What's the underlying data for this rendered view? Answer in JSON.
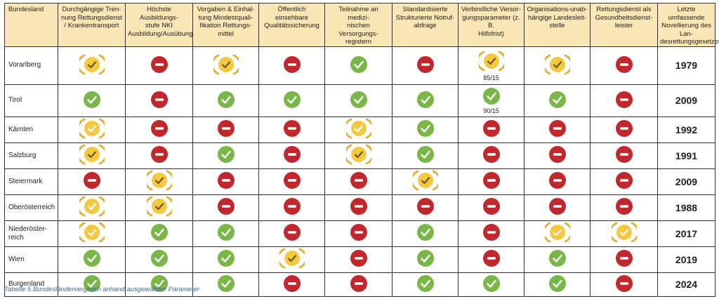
{
  "table": {
    "headers": [
      "Bundesland",
      "Durchgängige Tren-\nnung Rettungsdienst\n/ Krankentransport",
      "Höchste Ausbildungs-\nstufe NKI\nAusbildung/Ausübung",
      "Vorgaben & Einhal-\ntung Mindestquali-\nfikation Rettungs-\nmittel",
      "Öffentlich einsehbare\nQualitätssicherung",
      "Teilnahme an medizi-\nnischen Versorgungs-\nregistern",
      "Standardisierte\nStrukturierte Notruf-\nabfrage",
      "Verbindliche Versor-\ngungsparameter (z. B.\nHilfsfrist)",
      "Organisations-unab-\nhängige Landesleit-\nstelle",
      "Rettungsdienst als\nGesundheitsdienst-\nleister",
      "Letzte umfassende\nNovellierung des Lan-\ndesrettungsgesetzes"
    ],
    "rows": [
      {
        "state": "Vorarlberg",
        "cells": [
          "partial-check",
          "no",
          "partial-check",
          "no",
          "yes",
          "no",
          "partial-check",
          "partial-check",
          "no"
        ],
        "notes": {
          "6": "85/15"
        },
        "year": "1979"
      },
      {
        "state": "Tirol",
        "cells": [
          "yes",
          "no",
          "yes",
          "yes",
          "yes",
          "yes",
          "yes",
          "yes",
          "no"
        ],
        "notes": {
          "6": "90/15"
        },
        "year": "2009"
      },
      {
        "state": "Kärnten",
        "cells": [
          "partial",
          "no",
          "no",
          "no",
          "partial",
          "yes",
          "no",
          "no",
          "no"
        ],
        "notes": {},
        "year": "1992"
      },
      {
        "state": "Salzburg",
        "cells": [
          "partial-check",
          "no",
          "yes",
          "no",
          "partial-check",
          "yes",
          "no",
          "no",
          "no"
        ],
        "notes": {},
        "year": "1991"
      },
      {
        "state": "Steiermark",
        "cells": [
          "no",
          "partial-check",
          "no",
          "no",
          "no",
          "partial-check",
          "no",
          "no",
          "no"
        ],
        "notes": {},
        "year": "2009"
      },
      {
        "state": "Oberösterreich",
        "cells": [
          "partial",
          "partial-check",
          "no",
          "no",
          "no",
          "no",
          "no",
          "no",
          "no"
        ],
        "notes": {},
        "year": "1988"
      },
      {
        "state": "Niederöster-\nreich",
        "cells": [
          "partial",
          "yes",
          "yes",
          "no",
          "no",
          "yes",
          "no",
          "partial",
          "partial"
        ],
        "notes": {},
        "year": "2017"
      },
      {
        "state": "Wien",
        "cells": [
          "yes",
          "yes",
          "yes",
          "partial-check",
          "no",
          "yes",
          "no",
          "yes",
          "no"
        ],
        "notes": {},
        "year": "2019"
      },
      {
        "state": "Burgenland",
        "cells": [
          "yes",
          "yes",
          "yes",
          "no",
          "no",
          "yes",
          "yes",
          "yes",
          "no"
        ],
        "notes": {},
        "year": "2024"
      }
    ]
  },
  "caption": "Tabelle 5 Bundesländervergleich anhand ausgewählter Parameter",
  "icons": {
    "yes": {
      "name": "green-check-icon",
      "color": "#7ab648"
    },
    "no": {
      "name": "red-minus-icon",
      "color": "#c0282d"
    },
    "partial": {
      "name": "yellow-check-partial-icon",
      "color": "#f5c842",
      "bracket": "#e2a92a"
    }
  }
}
